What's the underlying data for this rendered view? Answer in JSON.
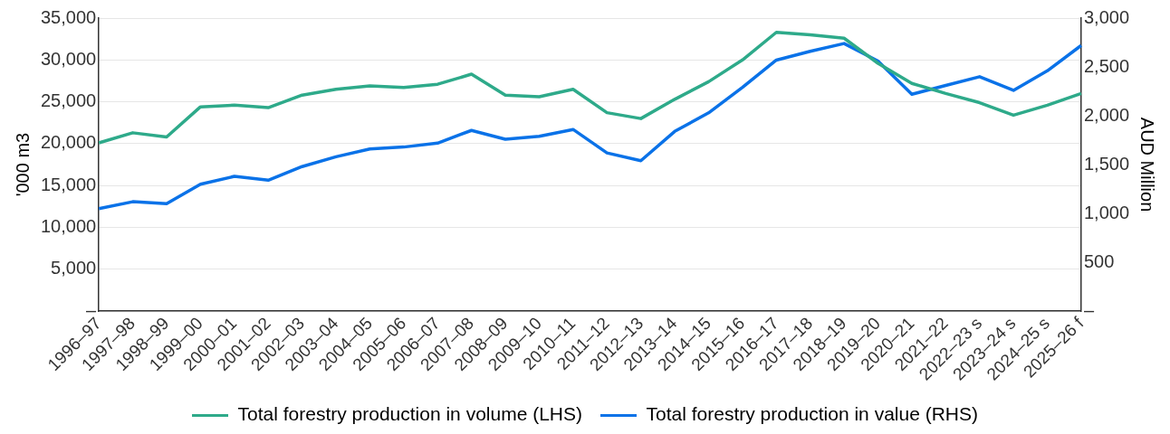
{
  "chart_data": {
    "type": "line",
    "ylabel": "'000 m3",
    "y2label": "AUD Million",
    "categories": [
      "1996–97",
      "1997–98",
      "1998–99",
      "1999–00",
      "2000–01",
      "2001–02",
      "2002–03",
      "2003–04",
      "2004–05",
      "2005–06",
      "2006–07",
      "2007–08",
      "2008–09",
      "2009–10",
      "2010–11",
      "2011–12",
      "2012–13",
      "2013–14",
      "2014–15",
      "2015–16",
      "2016–17",
      "2017–18",
      "2018–19",
      "2019–20",
      "2020–21",
      "2021–22",
      "2022–23 s",
      "2023–24 s",
      "2024–25 s",
      "2025–26 f"
    ],
    "series": [
      {
        "name": "Total forestry production in volume (LHS)",
        "color": "#2eaa8a",
        "values": [
          20100,
          21300,
          20800,
          24400,
          24600,
          24300,
          25800,
          26500,
          26900,
          26700,
          27100,
          28300,
          25800,
          25600,
          26500,
          23700,
          23000,
          25300,
          27400,
          30000,
          33300,
          33000,
          32600,
          29600,
          27200,
          26000,
          24900,
          23400,
          24600,
          26000
        ]
      },
      {
        "name": "Total forestry production in value (RHS)",
        "color": "#0a72e8",
        "axis": "y2",
        "values": [
          1050,
          1120,
          1100,
          1300,
          1380,
          1340,
          1480,
          1580,
          1660,
          1680,
          1720,
          1850,
          1760,
          1790,
          1860,
          1620,
          1540,
          1840,
          2030,
          2290,
          2570,
          2660,
          2740,
          2560,
          2220,
          2310,
          2400,
          2260,
          2460,
          2720
        ]
      }
    ],
    "ylim": [
      0,
      35000
    ],
    "yticks": [
      {
        "value": 0,
        "label": "–"
      },
      {
        "value": 5000,
        "label": "5,000"
      },
      {
        "value": 10000,
        "label": "10,000"
      },
      {
        "value": 15000,
        "label": "15,000"
      },
      {
        "value": 20000,
        "label": "20,000"
      },
      {
        "value": 25000,
        "label": "25,000"
      },
      {
        "value": 30000,
        "label": "30,000"
      },
      {
        "value": 35000,
        "label": "35,000"
      }
    ],
    "y2lim": [
      0,
      3000
    ],
    "y2ticks": [
      {
        "value": 0,
        "label": "–"
      },
      500,
      {
        "value": 1000,
        "label": "1,000"
      },
      {
        "value": 1500,
        "label": "1,500"
      },
      {
        "value": 2000,
        "label": "2,000"
      },
      {
        "value": 2500,
        "label": "2,500"
      },
      {
        "value": 3000,
        "label": "3,000"
      }
    ],
    "grid": "y",
    "legend": "bottom",
    "marker": "none",
    "line_style": "solid"
  }
}
